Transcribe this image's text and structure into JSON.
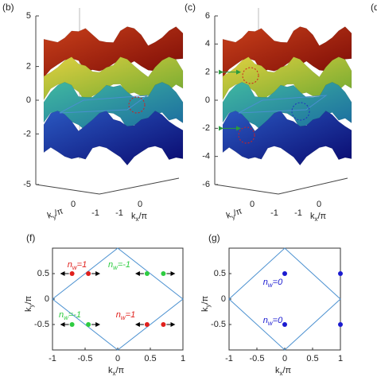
{
  "panels": [
    {
      "label": "(b)",
      "zlim": [
        -5,
        5
      ],
      "zticks": [
        5,
        2,
        0,
        -2,
        -5
      ],
      "ky_ticks": [
        0,
        -1
      ],
      "kx_ticks": [
        0,
        -1
      ],
      "ky_label": [
        "k",
        "y",
        "/π"
      ],
      "kx_label": [
        "k",
        "x",
        "/π"
      ]
    },
    {
      "label": "(c)",
      "zlim": [
        -6,
        6
      ],
      "zticks": [
        6,
        4,
        2,
        0,
        -2,
        -4,
        -6
      ],
      "ky_ticks": [
        0,
        -1
      ],
      "kx_ticks": [
        0,
        -1
      ],
      "ky_label": [
        "k",
        "y",
        "/π"
      ],
      "kx_label": [
        "k",
        "x",
        "/π"
      ]
    }
  ],
  "chart_data": [
    {
      "type": "scatter",
      "label": "(f)",
      "xlim": [
        -1,
        1
      ],
      "ylim": [
        -1,
        1
      ],
      "xticks": [
        -1,
        -0.5,
        0,
        0.5,
        1
      ],
      "yticks": [
        0.5,
        0,
        -0.5
      ],
      "xlabel": [
        "k",
        "x",
        "/π"
      ],
      "ylabel": [
        "k",
        "y",
        "/π"
      ],
      "series": [
        {
          "color": "#e0201c",
          "x": [
            -0.7,
            -0.45,
            0.45,
            0.7
          ],
          "y": [
            0.5,
            0.5,
            -0.5,
            -0.5
          ]
        },
        {
          "color": "#2ecc40",
          "x": [
            0.45,
            0.7,
            -0.7,
            -0.45
          ],
          "y": [
            0.5,
            0.5,
            -0.5,
            -0.5
          ]
        }
      ],
      "annotations": [
        {
          "text": [
            "n",
            "w",
            "=1"
          ],
          "color": "#e0201c"
        },
        {
          "text": [
            "n",
            "w",
            "=-1"
          ],
          "color": "#2ecc40"
        },
        {
          "text": [
            "n",
            "w",
            "=-1"
          ],
          "color": "#2ecc40"
        },
        {
          "text": [
            "n",
            "w",
            "=1"
          ],
          "color": "#e0201c"
        }
      ]
    },
    {
      "type": "scatter",
      "label": "(g)",
      "xlim": [
        -1,
        1
      ],
      "ylim": [
        -1,
        1
      ],
      "xticks": [
        -1,
        -0.5,
        0,
        0.5,
        1
      ],
      "yticks": [
        0.5,
        0,
        -0.5
      ],
      "xlabel": [
        "k",
        "x",
        "/π"
      ],
      "ylabel": [
        "k",
        "y",
        "/π"
      ],
      "series": [
        {
          "color": "#1a1ad0",
          "x": [
            0,
            0,
            1,
            1
          ],
          "y": [
            0.5,
            -0.5,
            0.5,
            -0.5
          ]
        }
      ],
      "annotations": [
        {
          "text": [
            "n",
            "w",
            "=0"
          ],
          "color": "#1a1ad0"
        },
        {
          "text": [
            "n",
            "w",
            "=0"
          ],
          "color": "#1a1ad0"
        }
      ]
    }
  ],
  "edge_label": "(d"
}
